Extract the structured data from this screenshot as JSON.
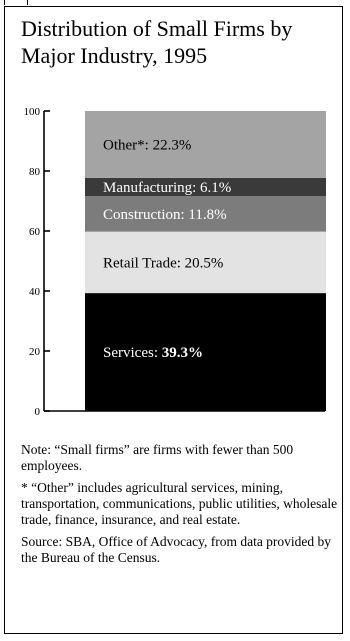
{
  "title": "Distribution of Small Firms by Major Industry, 1995",
  "chart_data": {
    "type": "bar",
    "stacked": true,
    "ylim": [
      0,
      100
    ],
    "y_ticks": [
      0,
      20,
      40,
      60,
      80,
      100
    ],
    "segments": [
      {
        "name": "Services",
        "value": 39.3,
        "label_prefix": "Services: ",
        "label_value": "39.3%",
        "color": "#000000",
        "text_color": "#ffffff",
        "bold_value": true
      },
      {
        "name": "Retail Trade",
        "value": 20.5,
        "label": "Retail Trade: 20.5%",
        "color": "#e3e3e3",
        "text_color": "#000000"
      },
      {
        "name": "Construction",
        "value": 11.8,
        "label": "Construction: 11.8%",
        "color": "#7c7c7c",
        "text_color": "#ffffff"
      },
      {
        "name": "Manufacturing",
        "value": 6.1,
        "label": "Manufacturing: 6.1%",
        "color": "#3a3a3a",
        "text_color": "#ffffff"
      },
      {
        "name": "Other",
        "value": 22.3,
        "label": "Other*: 22.3%",
        "color": "#a4a4a4",
        "text_color": "#000000"
      }
    ]
  },
  "notes": {
    "note": "Note: “Small firms” are firms with fewer than 500 employees.",
    "other": "* “Other” includes agricultural services, mining, transportation, communications, public utilities, wholesale trade, finance, insurance, and real estate.",
    "source": "Source: SBA, Office of Advocacy, from data provided by the Bureau of the Census."
  }
}
